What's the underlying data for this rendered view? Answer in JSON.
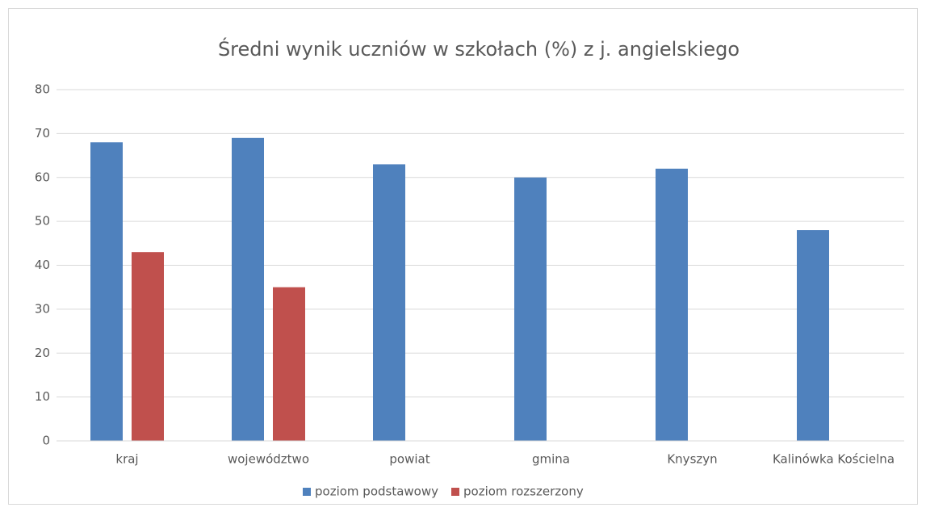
{
  "chart_data": {
    "type": "bar",
    "title": "Średni wynik uczniów w szkołach (%) z j. angielskiego",
    "categories": [
      "kraj",
      "województwo",
      "powiat",
      "gmina",
      "Knyszyn",
      "Kalinówka Kościelna"
    ],
    "series": [
      {
        "name": "poziom podstawowy",
        "color": "#4f81bd",
        "values": [
          68,
          69,
          63,
          60,
          62,
          48
        ]
      },
      {
        "name": "poziom rozszerzony",
        "color": "#c0504d",
        "values": [
          43,
          35,
          null,
          null,
          null,
          null
        ]
      }
    ],
    "ylim": [
      0,
      80
    ],
    "yticks": [
      0,
      10,
      20,
      30,
      40,
      50,
      60,
      70,
      80
    ],
    "grid": true,
    "legend": "bottom"
  }
}
